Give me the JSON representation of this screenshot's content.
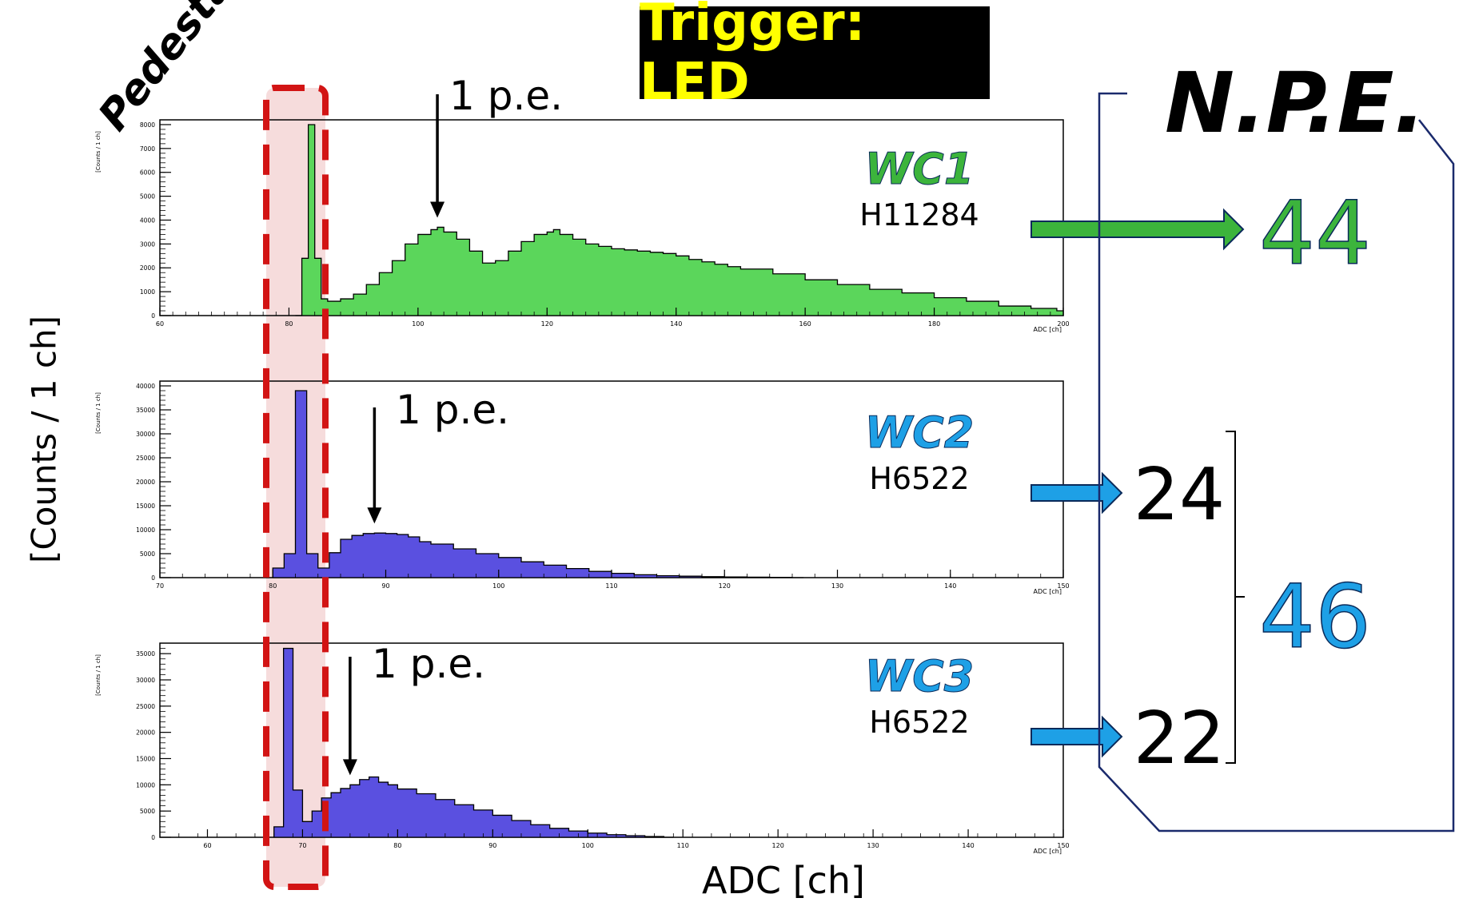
{
  "trigger": "Trigger: LED",
  "pedestal_label": "Pedestal",
  "y_label": "[Counts / 1 ch]",
  "x_label": "ADC [ch]",
  "npe_title": "N.P.E.",
  "colors": {
    "green": "#3cb43c",
    "blue": "#1ea0e6",
    "hist_green": "#5bd65b",
    "hist_blue": "#5a50e0",
    "pedestal_dash": "#d21414",
    "pedestal_fill": "#f6dcdc",
    "bracket": "#1a2a6c"
  },
  "npe": {
    "wc1": "44",
    "wc2": "24",
    "wc3": "22",
    "sum23": "46"
  },
  "chart_data": [
    {
      "type": "bar",
      "name": "WC1",
      "pmt": "H11284",
      "annotation": "1 p.e.",
      "ylabel": "[Counts / 1 ch]",
      "xlabel": "ADC [ch]",
      "xlim": [
        60,
        200
      ],
      "ylim": [
        0,
        8200
      ],
      "x_ticks": [
        "60",
        "80",
        "100",
        "120",
        "140",
        "160",
        "180",
        "200"
      ],
      "y_ticks": [
        "0",
        "1000",
        "2000",
        "3000",
        "4000",
        "5000",
        "6000",
        "7000",
        "8000"
      ],
      "pe_x": 103,
      "x": [
        81,
        82,
        83,
        84,
        85,
        86,
        88,
        90,
        92,
        94,
        96,
        98,
        100,
        102,
        103,
        104,
        106,
        108,
        110,
        112,
        114,
        116,
        118,
        120,
        121,
        122,
        124,
        126,
        128,
        130,
        132,
        134,
        136,
        138,
        140,
        142,
        144,
        146,
        148,
        150,
        155,
        160,
        165,
        170,
        175,
        180,
        185,
        190,
        195,
        199
      ],
      "values": [
        0,
        2400,
        8000,
        2400,
        700,
        600,
        700,
        900,
        1300,
        1800,
        2300,
        3000,
        3400,
        3600,
        3700,
        3500,
        3200,
        2700,
        2200,
        2300,
        2700,
        3100,
        3400,
        3500,
        3600,
        3400,
        3200,
        3000,
        2900,
        2800,
        2750,
        2700,
        2650,
        2600,
        2500,
        2350,
        2250,
        2150,
        2050,
        1950,
        1750,
        1500,
        1300,
        1100,
        950,
        750,
        600,
        400,
        300,
        200
      ]
    },
    {
      "type": "bar",
      "name": "WC2",
      "pmt": "H6522",
      "annotation": "1 p.e.",
      "ylabel": "[Counts / 1 ch]",
      "xlabel": "ADC [ch]",
      "xlim": [
        70,
        150
      ],
      "ylim": [
        0,
        41000
      ],
      "x_ticks": [
        "70",
        "80",
        "90",
        "100",
        "110",
        "120",
        "130",
        "140",
        "150"
      ],
      "y_ticks": [
        "0",
        "5000",
        "10000",
        "15000",
        "20000",
        "25000",
        "30000",
        "35000",
        "40000"
      ],
      "pe_x": 89,
      "x": [
        80,
        81,
        82,
        83,
        84,
        85,
        86,
        87,
        88,
        89,
        90,
        91,
        92,
        93,
        94,
        96,
        98,
        100,
        102,
        104,
        106,
        108,
        110,
        112,
        114,
        116,
        118,
        120,
        122,
        124,
        126
      ],
      "values": [
        2000,
        5000,
        39000,
        5000,
        2000,
        5200,
        8000,
        8800,
        9200,
        9300,
        9200,
        9000,
        8500,
        7500,
        7000,
        6000,
        5000,
        4200,
        3300,
        2600,
        1900,
        1300,
        900,
        600,
        400,
        300,
        200,
        150,
        100,
        50,
        0
      ]
    },
    {
      "type": "bar",
      "name": "WC3",
      "pmt": "H6522",
      "annotation": "1 p.e.",
      "ylabel": "[Counts / 1 ch]",
      "xlabel": "ADC [ch]",
      "xlim": [
        55,
        150
      ],
      "ylim": [
        0,
        37000
      ],
      "x_ticks": [
        "60",
        "70",
        "80",
        "90",
        "100",
        "110",
        "120",
        "130",
        "140",
        "150"
      ],
      "y_ticks": [
        "0",
        "5000",
        "10000",
        "15000",
        "20000",
        "25000",
        "30000",
        "35000"
      ],
      "pe_x": 75,
      "x": [
        67,
        68,
        69,
        70,
        71,
        72,
        73,
        74,
        75,
        76,
        77,
        78,
        79,
        80,
        82,
        84,
        86,
        88,
        90,
        92,
        94,
        96,
        98,
        100,
        102,
        104,
        106,
        108
      ],
      "values": [
        2000,
        36000,
        9000,
        3000,
        5000,
        7500,
        8500,
        9300,
        10000,
        11000,
        11500,
        10500,
        10000,
        9200,
        8300,
        7200,
        6200,
        5200,
        4200,
        3200,
        2400,
        1700,
        1200,
        800,
        500,
        300,
        150,
        0
      ]
    }
  ]
}
